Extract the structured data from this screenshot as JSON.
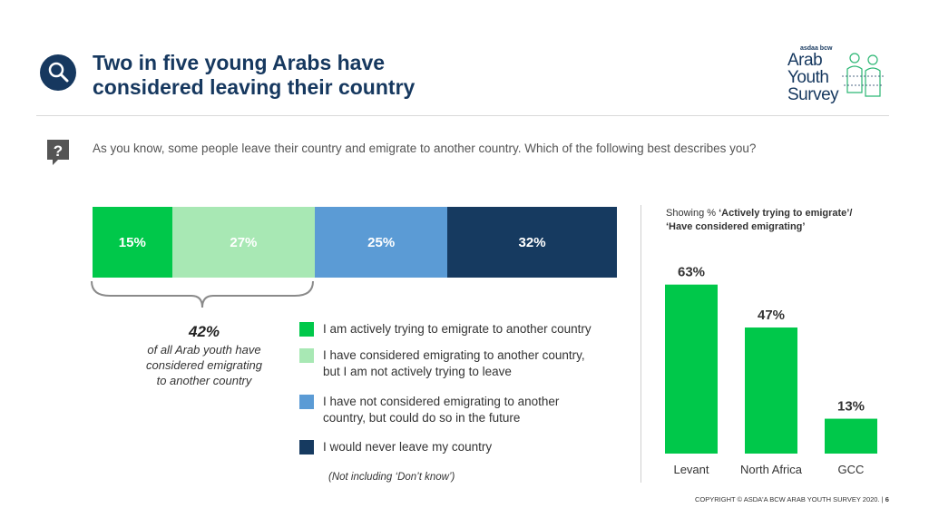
{
  "header": {
    "title_line1": "Two in five young Arabs have",
    "title_line2": "considered leaving their country",
    "logo": {
      "brand": "asdaa bcw",
      "line1": "Arab",
      "line2": "Youth",
      "line3": "Survey"
    }
  },
  "question": "As you know, some people leave their country and emigrate to another country. Which of the following best describes you?",
  "summary": {
    "value": "42%",
    "text_lines": [
      "of all Arab youth have",
      "considered emigrating",
      "to another country"
    ]
  },
  "legend": [
    {
      "lines": [
        "I am actively trying to emigrate to another country"
      ],
      "color": "#00c84a"
    },
    {
      "lines": [
        "I have considered emigrating to another country,",
        "but I am not actively trying to leave"
      ],
      "color": "#a8e8b4"
    },
    {
      "lines": [
        "I have not considered emigrating to another",
        "country, but could do so in the future"
      ],
      "color": "#5b9bd5"
    },
    {
      "lines": [
        "I would never leave my country"
      ],
      "color": "#163a60"
    }
  ],
  "note": "(Not including ‘Don’t know’)",
  "region_chart": {
    "caption_prefix": "Showing % ",
    "caption_bold_1": "‘Actively trying to emigrate’/",
    "caption_bold_2": "‘Have considered emigrating’"
  },
  "footer": {
    "copyright": "COPYRIGHT © ASDA'A BCW ARAB YOUTH SURVEY 2020.",
    "page": "6"
  },
  "chart_data": [
    {
      "type": "bar",
      "orientation": "horizontal-stacked",
      "series": [
        {
          "value": 15,
          "label": "15%",
          "color": "#00c84a"
        },
        {
          "value": 27,
          "label": "27%",
          "color": "#a8e8b4"
        },
        {
          "value": 25,
          "label": "25%",
          "color": "#5b9bd5"
        },
        {
          "value": 32,
          "label": "32%",
          "color": "#163a60"
        }
      ],
      "legend_placement": "bottom-right"
    },
    {
      "type": "bar",
      "categories": [
        "Levant",
        "North Africa",
        "GCC"
      ],
      "values": [
        63,
        47,
        13
      ],
      "labels": [
        "63%",
        "47%",
        "13%"
      ],
      "color": "#00c84a",
      "ylim": [
        0,
        70
      ],
      "grid": false
    }
  ]
}
